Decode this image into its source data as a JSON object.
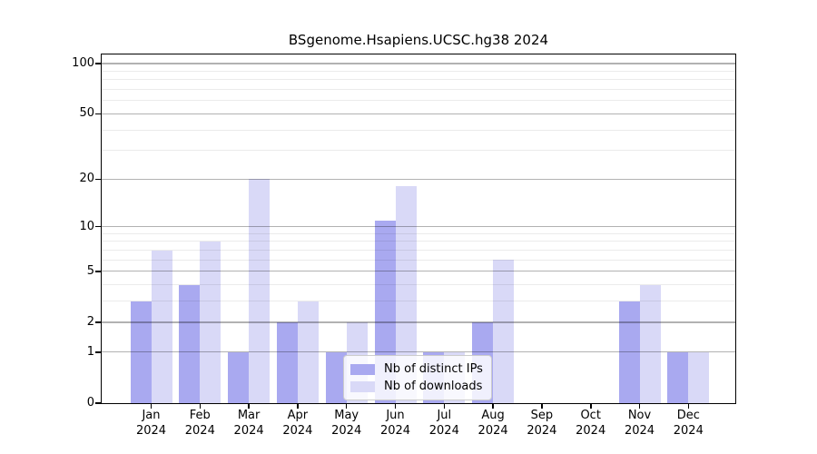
{
  "title": "BSgenome.Hsapiens.UCSC.hg38 2024",
  "chart_data": {
    "type": "bar",
    "title": "BSgenome.Hsapiens.UCSC.hg38 2024",
    "categories": [
      "Jan",
      "Feb",
      "Mar",
      "Apr",
      "May",
      "Jun",
      "Jul",
      "Aug",
      "Sep",
      "Oct",
      "Nov",
      "Dec"
    ],
    "category_year": "2024",
    "series": [
      {
        "name": "Nb of distinct IPs",
        "color": "#a9a9f0",
        "values": [
          3,
          4,
          1,
          2,
          1,
          11,
          1,
          2,
          0,
          0,
          3,
          1
        ]
      },
      {
        "name": "Nb of downloads",
        "color": "#d9d9f7",
        "values": [
          7,
          8,
          20,
          3,
          2,
          18,
          1,
          6,
          0,
          0,
          4,
          1
        ]
      }
    ],
    "xlabel": "",
    "ylabel": "",
    "y_scale": "log10(1+x)",
    "y_tick_values": [
      0,
      1,
      2,
      5,
      10,
      20,
      50,
      100
    ],
    "y_tick_labels": [
      "0",
      "1",
      "2",
      "5",
      "10",
      "20",
      "50",
      "100"
    ],
    "y_minor_gridlines": [
      3,
      4,
      6,
      7,
      8,
      9,
      30,
      40,
      60,
      70,
      80,
      90
    ],
    "ylim": [
      0,
      113
    ],
    "grid": true,
    "legend_position": "lower center",
    "colors": {
      "bar_distinct_ips": "#a9a9f0",
      "bar_downloads": "#d9d9f7",
      "axis": "#000000",
      "major_grid": "rgba(0,0,0,0.30)",
      "minor_grid": "rgba(0,0,0,0.08)",
      "background": "#ffffff",
      "legend_border": "#cccccc"
    }
  }
}
